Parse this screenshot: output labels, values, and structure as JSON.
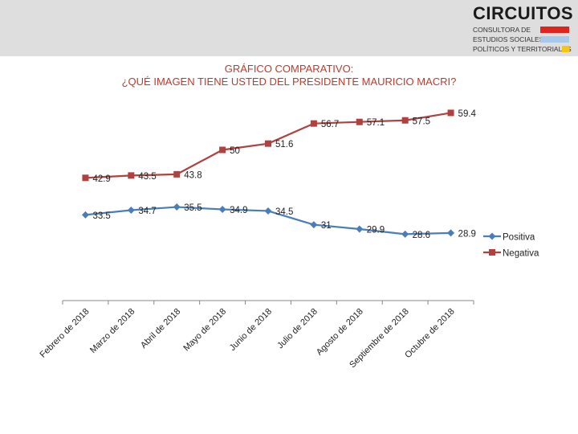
{
  "header": {
    "brand_name": "CIRCUITOS",
    "brand_lines": [
      "CONSULTORA DE",
      "ESTUDIOS SOCIALES,",
      "POLÍTICOS Y TERRITORIALES"
    ],
    "brand_bar_colors": [
      "#e0231d",
      "#a8c8ec",
      "#f5c518"
    ]
  },
  "chart_data": {
    "type": "line",
    "title": "GRÁFICO COMPARATIVO:",
    "subtitle": "¿QUÉ IMAGEN TIENE USTED DEL PRESIDENTE MAURICIO MACRI?",
    "categories": [
      "Febrero de 2018",
      "Marzo de 2018",
      "Abril de 2018",
      "Mayo de 2018",
      "Junio de 2018",
      "Julio de 2018",
      "Agosto de 2018",
      "Septiembre de 2018",
      "Octubre de 2018"
    ],
    "series": [
      {
        "name": "Positiva",
        "values": [
          33.5,
          34.7,
          35.5,
          34.9,
          34.5,
          31,
          29.9,
          28.6,
          28.9
        ],
        "color": "#4a7ebb",
        "marker": "diamond"
      },
      {
        "name": "Negativa",
        "values": [
          42.9,
          43.5,
          43.8,
          50,
          51.6,
          56.7,
          57.1,
          57.5,
          59.4
        ],
        "color": "#b0413e",
        "marker": "square"
      }
    ],
    "ylim": [
      0,
      70
    ],
    "y_axis_visible": false,
    "grid": false,
    "legend_position": "right",
    "data_labels": true
  }
}
